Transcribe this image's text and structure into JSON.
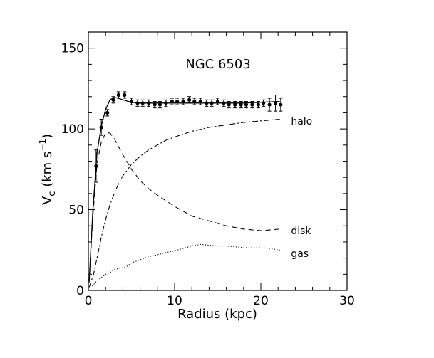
{
  "chart_data": {
    "type": "line",
    "title": "NGC 6503",
    "xlabel": "Radius (kpc)",
    "ylabel_main": "V",
    "ylabel_sub": "c",
    "ylabel_rest": " (km s",
    "ylabel_sup": "−1",
    "ylabel_end": ")",
    "xlim": [
      0,
      30
    ],
    "ylim": [
      0,
      160
    ],
    "xticks": [
      0,
      10,
      20,
      30
    ],
    "yticks": [
      0,
      50,
      100,
      150
    ],
    "grid": false,
    "legend": "none",
    "series": [
      {
        "name": "halo",
        "style": "dashdot",
        "x": [
          0.1,
          0.6,
          1.0,
          1.5,
          2.0,
          2.5,
          3.0,
          3.5,
          4.0,
          5.0,
          6.0,
          7.0,
          8.0,
          9.0,
          10.0,
          12.0,
          14.0,
          16.0,
          18.0,
          20.0,
          22.2
        ],
        "y": [
          2,
          10,
          20,
          33,
          44,
          53,
          60,
          66,
          71,
          78,
          83,
          87,
          90,
          93,
          95,
          98.5,
          101,
          102.5,
          104,
          105,
          106
        ]
      },
      {
        "name": "disk",
        "style": "dashed",
        "x": [
          0.1,
          0.5,
          1.0,
          1.5,
          2.0,
          2.5,
          3.0,
          3.5,
          4.0,
          5.0,
          6.0,
          7.0,
          8.0,
          10.0,
          12.0,
          14.0,
          16.0,
          18.0,
          20.0,
          22.2
        ],
        "y": [
          5,
          45,
          78,
          92,
          97.5,
          97.5,
          94,
          89,
          84,
          75,
          68,
          63,
          59,
          52,
          46,
          43,
          40,
          38,
          37,
          38
        ]
      },
      {
        "name": "gas",
        "style": "dotted",
        "x": [
          0.1,
          0.5,
          1.0,
          1.5,
          2.0,
          2.5,
          3.0,
          3.5,
          4.0,
          4.5,
          5.0,
          6.0,
          7.0,
          8.0,
          9.0,
          10.0,
          11.0,
          12.0,
          13.0,
          14.0,
          15.0,
          16.0,
          17.0,
          18.0,
          19.0,
          20.0,
          21.0,
          22.2
        ],
        "y": [
          0,
          3,
          6,
          8,
          10,
          11,
          13,
          13.5,
          14,
          15,
          17,
          19,
          21,
          22,
          23.5,
          24.5,
          26,
          27.5,
          28.5,
          28,
          27.5,
          27.5,
          27,
          26.5,
          26.5,
          26.5,
          26,
          25
        ]
      },
      {
        "name": "",
        "style": "solid",
        "x": [
          0.1,
          0.5,
          1.0,
          1.5,
          2.0,
          2.5,
          3.0,
          3.5,
          4.0,
          5.0,
          6.0,
          8.0,
          10.0,
          12.0,
          14.0,
          16.0,
          18.0,
          20.0,
          22.2
        ],
        "y": [
          6,
          48,
          85,
          102,
          112,
          118,
          119.5,
          119,
          118,
          116.5,
          116,
          116,
          116,
          116,
          116,
          116,
          116,
          116.5,
          117
        ]
      }
    ],
    "points": {
      "name": "",
      "x": [
        0.9,
        1.5,
        2.2,
        2.9,
        3.5,
        4.2,
        5.0,
        5.7,
        6.3,
        7.0,
        7.7,
        8.3,
        9.0,
        9.7,
        10.3,
        11.0,
        11.7,
        12.3,
        13.0,
        13.7,
        14.3,
        15.0,
        15.7,
        16.3,
        17.0,
        17.7,
        18.3,
        19.0,
        19.7,
        20.3,
        21.0,
        21.7,
        22.3
      ],
      "y": [
        77,
        101,
        110,
        118,
        121,
        121,
        117,
        116,
        116,
        116,
        115,
        115,
        116,
        117,
        117,
        117,
        118,
        117,
        117,
        116,
        116,
        117,
        116,
        115,
        115,
        115,
        115,
        115,
        115,
        116,
        115,
        116,
        115
      ],
      "err": [
        10,
        5,
        2,
        2,
        2,
        2,
        2,
        2,
        2,
        2,
        2,
        2,
        2,
        2,
        2,
        2,
        2,
        2,
        2,
        2,
        2,
        2,
        2,
        2,
        2,
        2,
        2,
        2,
        2,
        2,
        4,
        5,
        4
      ]
    },
    "series_labels": [
      {
        "text": "halo",
        "x": 23.5,
        "y": 105
      },
      {
        "text": "disk",
        "x": 23.5,
        "y": 37
      },
      {
        "text": "gas",
        "x": 23.5,
        "y": 23
      }
    ]
  }
}
